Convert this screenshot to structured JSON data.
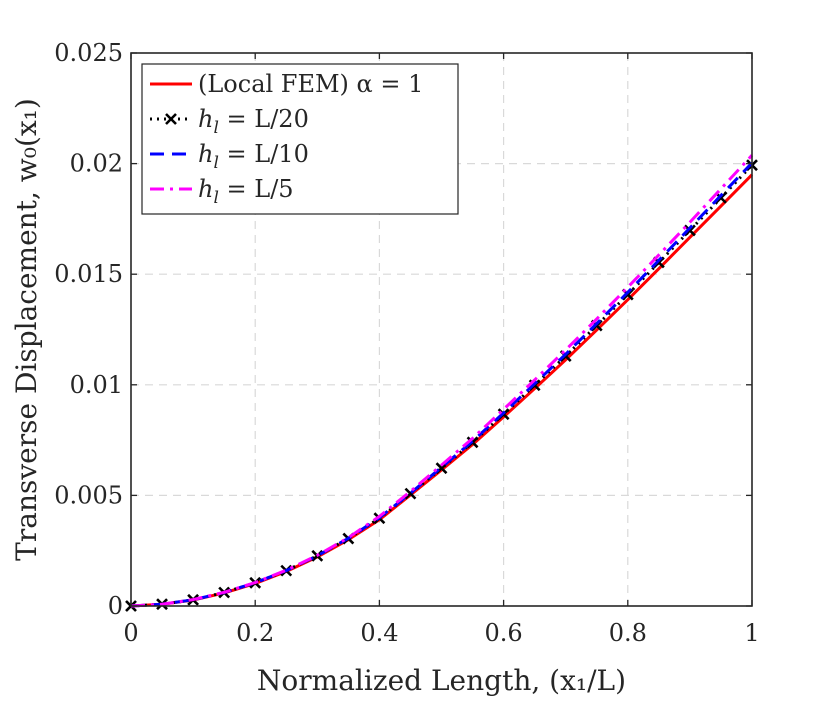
{
  "chart_data": {
    "type": "line",
    "xlabel": "Normalized Length, (x₁/L)",
    "ylabel": "Transverse Displacement, w₀(x₁)",
    "xlim": [
      0,
      1
    ],
    "ylim": [
      0,
      0.025
    ],
    "grid": true,
    "legend_position": "top-left",
    "x_ticks": [
      0,
      0.2,
      0.4,
      0.6,
      0.8,
      1
    ],
    "x_tick_labels": [
      "0",
      "0.2",
      "0.4",
      "0.6",
      "0.8",
      "1"
    ],
    "y_ticks": [
      0,
      0.005,
      0.01,
      0.015,
      0.02,
      0.025
    ],
    "y_tick_labels": [
      "0",
      "0.005",
      "0.01",
      "0.015",
      "0.02",
      "0.025"
    ],
    "series": [
      {
        "name": "(Local FEM) α = 1",
        "color": "#ff0000",
        "line_style": "solid",
        "marker": "none",
        "x": [
          0,
          0.05,
          0.1,
          0.15,
          0.2,
          0.25,
          0.3,
          0.35,
          0.4,
          0.45,
          0.5,
          0.55,
          0.6,
          0.65,
          0.7,
          0.75,
          0.8,
          0.85,
          0.9,
          0.95,
          1
        ],
        "y": [
          0,
          8e-05,
          0.00027,
          0.00059,
          0.00102,
          0.00156,
          0.00222,
          0.003,
          0.0039,
          0.00502,
          0.00615,
          0.0073,
          0.00855,
          0.00983,
          0.01113,
          0.01248,
          0.01385,
          0.01525,
          0.01667,
          0.01808,
          0.0195
        ]
      },
      {
        "name": "h_l = L/20",
        "color": "#000000",
        "line_style": "dotted",
        "marker": "x",
        "x": [
          0,
          0.05,
          0.1,
          0.15,
          0.2,
          0.25,
          0.3,
          0.35,
          0.4,
          0.45,
          0.5,
          0.55,
          0.6,
          0.65,
          0.7,
          0.75,
          0.8,
          0.85,
          0.9,
          0.95,
          1
        ],
        "y": [
          0,
          8e-05,
          0.00028,
          0.00061,
          0.00105,
          0.0016,
          0.00227,
          0.00305,
          0.00397,
          0.00508,
          0.00623,
          0.0074,
          0.00867,
          0.00998,
          0.0113,
          0.01268,
          0.01408,
          0.01553,
          0.01698,
          0.01845,
          0.01993
        ]
      },
      {
        "name": "h_l = L/10",
        "color": "#0000ff",
        "line_style": "dashed",
        "marker": "none",
        "x": [
          0,
          0.05,
          0.1,
          0.15,
          0.2,
          0.25,
          0.3,
          0.35,
          0.4,
          0.45,
          0.5,
          0.55,
          0.6,
          0.65,
          0.7,
          0.75,
          0.8,
          0.85,
          0.9,
          0.95,
          1
        ],
        "y": [
          0,
          8e-05,
          0.00028,
          0.00061,
          0.00105,
          0.0016,
          0.00227,
          0.00306,
          0.00399,
          0.0051,
          0.00627,
          0.00745,
          0.00873,
          0.01005,
          0.01138,
          0.01277,
          0.01418,
          0.01563,
          0.01709,
          0.01856,
          0.02003
        ]
      },
      {
        "name": "h_l = L/5",
        "color": "#ff00ff",
        "line_style": "dashdot",
        "marker": "none",
        "x": [
          0,
          0.05,
          0.1,
          0.15,
          0.2,
          0.25,
          0.3,
          0.35,
          0.4,
          0.45,
          0.5,
          0.55,
          0.6,
          0.65,
          0.7,
          0.75,
          0.8,
          0.85,
          0.9,
          0.95,
          1
        ],
        "y": [
          0,
          8e-05,
          0.00029,
          0.00062,
          0.00106,
          0.00162,
          0.00229,
          0.00309,
          0.00405,
          0.00518,
          0.00637,
          0.00758,
          0.00889,
          0.01022,
          0.01158,
          0.01298,
          0.01441,
          0.01587,
          0.01735,
          0.01886,
          0.02038
        ]
      }
    ]
  }
}
